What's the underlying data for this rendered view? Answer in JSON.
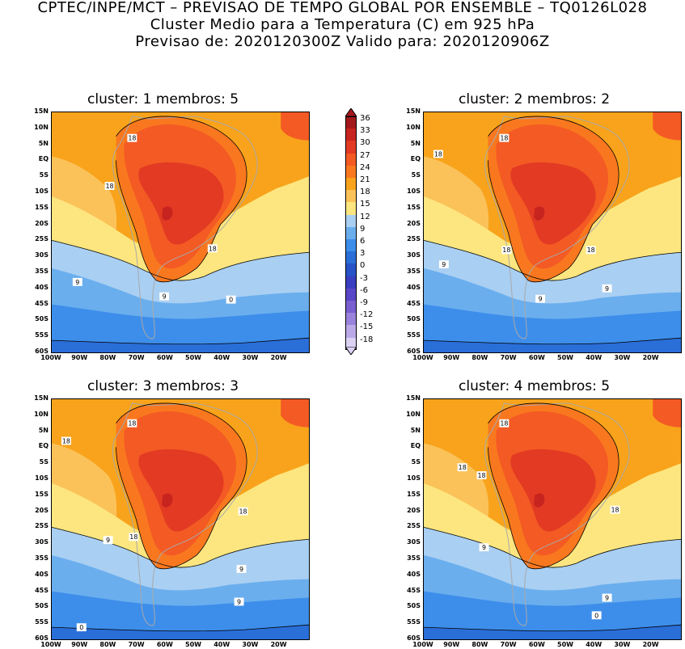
{
  "header": {
    "line1": "CPTEC/INPE/MCT – PREVISAO DE TEMPO GLOBAL POR ENSEMBLE – TQ0126L028",
    "line2": "Cluster Medio para a Temperatura (C) em 925 hPa",
    "line3": "Previsao de: 2020120300Z   Valido para: 2020120906Z"
  },
  "panels": [
    {
      "title": "cluster: 1   membros: 5"
    },
    {
      "title": "cluster: 2   membros: 2"
    },
    {
      "title": "cluster: 3   membros: 3"
    },
    {
      "title": "cluster: 4   membros: 5"
    }
  ],
  "lat_labels": [
    "15N",
    "10N",
    "5N",
    "EQ",
    "5S",
    "10S",
    "15S",
    "20S",
    "25S",
    "30S",
    "35S",
    "40S",
    "45S",
    "50S",
    "55S",
    "60S"
  ],
  "lon_labels": [
    "100W",
    "90W",
    "80W",
    "70W",
    "60W",
    "50W",
    "40W",
    "30W",
    "20W"
  ],
  "colorbar": {
    "labels": [
      "36",
      "33",
      "30",
      "27",
      "24",
      "21",
      "18",
      "15",
      "12",
      "9",
      "6",
      "3",
      "0",
      "-3",
      "-6",
      "-9",
      "-12",
      "-15",
      "-18"
    ],
    "colors": [
      "#a3191b",
      "#c8241f",
      "#e23a23",
      "#f45a24",
      "#f9781f",
      "#f8a31b",
      "#fbc25a",
      "#fde680",
      "#a9cff2",
      "#6aaeee",
      "#3d8eea",
      "#2a6ed8",
      "#2752c8",
      "#3a3ec0",
      "#5a47c8",
      "#7a5fd0",
      "#9a83dc",
      "#bba9e8",
      "#dcd2f4"
    ]
  },
  "contour_labels": {
    "p1": [
      "18",
      "18",
      "18",
      "9",
      "9",
      "0"
    ],
    "p2": [
      "18",
      "18",
      "18",
      "18",
      "9",
      "9",
      "9"
    ],
    "p3": [
      "18",
      "18",
      "18",
      "18",
      "9",
      "9",
      "9",
      "0"
    ],
    "p4": [
      "18",
      "18",
      "18",
      "18",
      "9",
      "9",
      "0"
    ]
  }
}
